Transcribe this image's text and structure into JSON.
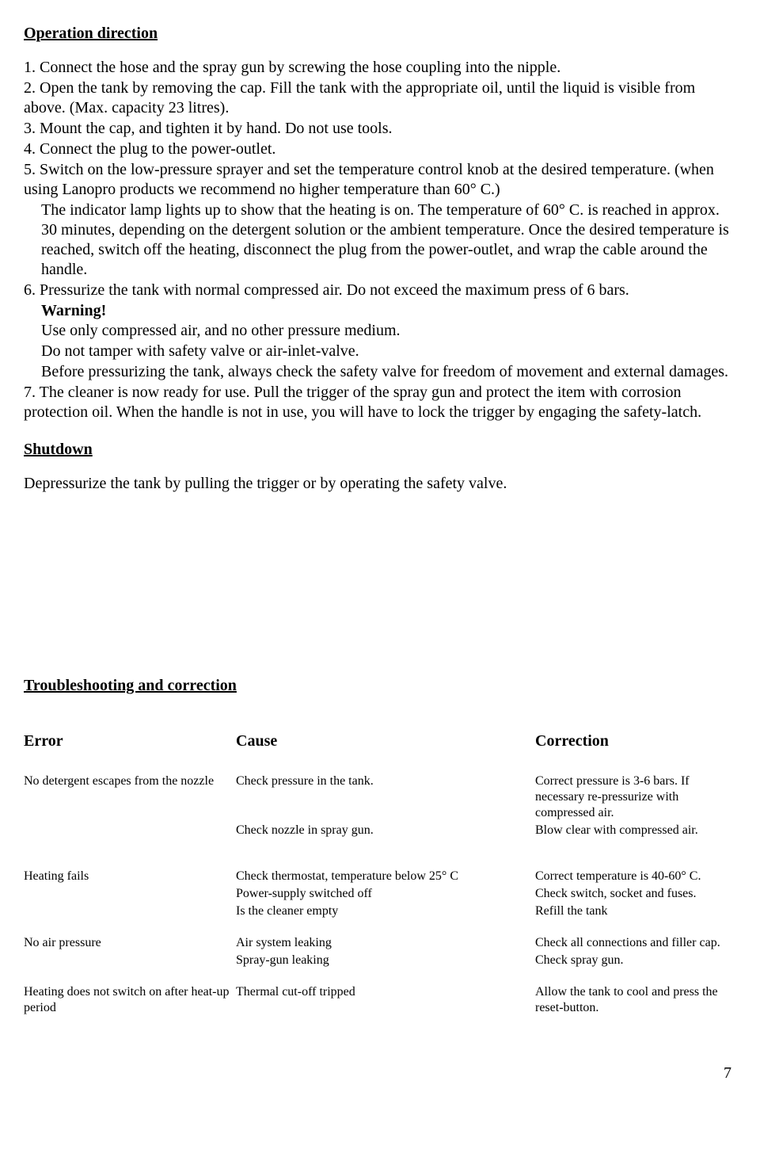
{
  "headings": {
    "operation": "Operation direction",
    "shutdown": "Shutdown",
    "troubleshoot": "Troubleshooting and correction"
  },
  "steps": {
    "s1": "1. Connect the hose and the spray gun by screwing the hose coupling into the nipple.",
    "s2": "2. Open the tank by removing the cap. Fill the tank with the appropriate oil, until the liquid is visible from above. (Max. capacity 23 litres).",
    "s3": "3. Mount the cap, and tighten it by hand. Do not use tools.",
    "s4": "4. Connect the plug to the power-outlet.",
    "s5": "5. Switch on the low-pressure sprayer and set the temperature control knob at the desired temperature. (when using Lanopro products we recommend no higher temperature than 60° C.)",
    "s5b": "The indicator lamp lights up to show that the heating is on. The temperature of 60° C. is reached in approx. 30 minutes, depending on the detergent solution or the ambient temperature. Once the desired temperature is reached, switch off the heating, disconnect the plug from the power-outlet, and wrap the cable around the handle.",
    "s6": "6. Pressurize the tank with normal compressed air. Do not exceed the maximum press of 6 bars.",
    "warning": "Warning!",
    "w1": "Use only compressed air, and no other pressure medium.",
    "w2": "Do not tamper with safety valve or air-inlet-valve.",
    "w3": "Before pressurizing the tank, always check the safety valve for freedom of movement and external damages.",
    "s7": "7. The cleaner is now ready for use. Pull the trigger of the spray gun and protect the item with corrosion protection oil. When the handle is not in use, you will have to lock the trigger by engaging the safety-latch."
  },
  "shutdown_text": "Depressurize the tank by pulling the trigger or by operating the safety valve.",
  "table": {
    "headers": {
      "error": "Error",
      "cause": "Cause",
      "correction": "Correction"
    },
    "rows": [
      {
        "error": "No detergent escapes from the nozzle",
        "cause": "Check pressure in the tank.",
        "correction": "Correct pressure is 3-6 bars. If necessary re-pressurize with compressed air."
      },
      {
        "error": "",
        "cause": "Check nozzle in spray gun.",
        "correction": "Blow clear with compressed air."
      },
      {
        "gap": true
      },
      {
        "error": "Heating fails",
        "cause": "Check thermostat, temperature below 25° C",
        "correction": "Correct temperature is 40-60° C."
      },
      {
        "error": "",
        "cause": "Power-supply switched off",
        "correction": "Check switch, socket and fuses."
      },
      {
        "error": "",
        "cause": "Is the cleaner empty",
        "correction": "Refill the tank"
      },
      {
        "smallgap": true
      },
      {
        "error": "No air pressure",
        "cause": "Air system leaking",
        "correction": "Check all connections and filler cap."
      },
      {
        "error": "",
        "cause": "Spray-gun leaking",
        "correction": "Check spray gun."
      },
      {
        "smallgap": true
      },
      {
        "error": "Heating does not switch on after heat-up period",
        "cause": "Thermal cut-off tripped",
        "correction": "Allow the tank to cool and press the reset-button."
      }
    ]
  },
  "page_number": "7"
}
